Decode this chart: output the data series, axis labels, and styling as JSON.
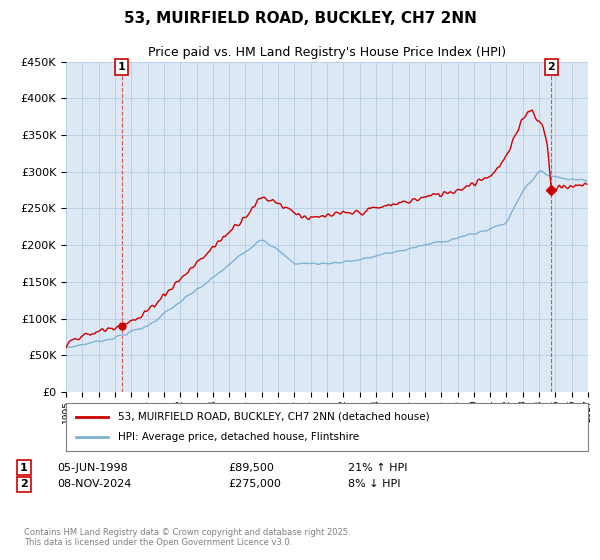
{
  "title": "53, MUIRFIELD ROAD, BUCKLEY, CH7 2NN",
  "subtitle": "Price paid vs. HM Land Registry's House Price Index (HPI)",
  "title_fontsize": 11,
  "subtitle_fontsize": 9,
  "sale1_date": "05-JUN-1998",
  "sale1_price": 89500,
  "sale1_label": "1",
  "sale1_hpi_pct": "21% ↑ HPI",
  "sale2_date": "08-NOV-2024",
  "sale2_price": 275000,
  "sale2_label": "2",
  "sale2_hpi_pct": "8% ↓ HPI",
  "legend_line1": "53, MUIRFIELD ROAD, BUCKLEY, CH7 2NN (detached house)",
  "legend_line2": "HPI: Average price, detached house, Flintshire",
  "line_color_house": "#cc0000",
  "line_color_hpi": "#7fb3d3",
  "point_color_house": "#cc0000",
  "background_color": "#ffffff",
  "plot_bg_color": "#dce9f5",
  "grid_color": "#b0c8e0",
  "ylim_min": 0,
  "ylim_max": 450000,
  "xlim_min": 1995,
  "xlim_max": 2027,
  "footer": "Contains HM Land Registry data © Crown copyright and database right 2025.\nThis data is licensed under the Open Government Licence v3.0."
}
